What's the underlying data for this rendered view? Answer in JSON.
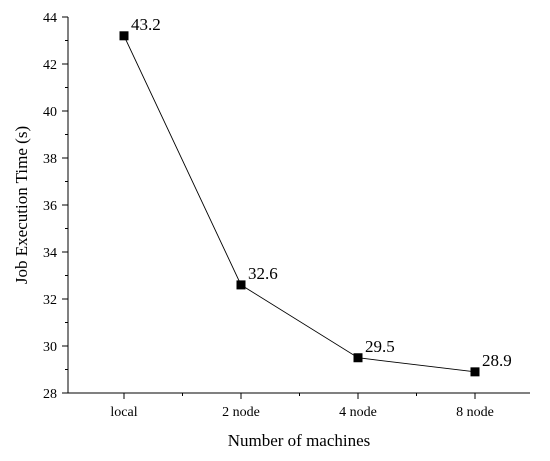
{
  "chart_data": {
    "type": "line",
    "title": "",
    "xlabel": "Number of machines",
    "ylabel": "Job Execution Time (s)",
    "categories": [
      "local",
      "2 node",
      "4 node",
      "8 node"
    ],
    "series": [
      {
        "values": [
          43.2,
          32.6,
          29.5,
          28.9
        ],
        "data_labels": [
          "43.2",
          "32.6",
          "29.5",
          "28.9"
        ],
        "marker": "square",
        "color": "#000000"
      }
    ],
    "ylim": [
      28,
      44
    ],
    "yticks": [
      28,
      30,
      32,
      34,
      36,
      38,
      40,
      42,
      44
    ],
    "ytick_labels": [
      "28",
      "30",
      "32",
      "34",
      "36",
      "38",
      "40",
      "42",
      "44"
    ],
    "grid": false,
    "legend": "none"
  }
}
